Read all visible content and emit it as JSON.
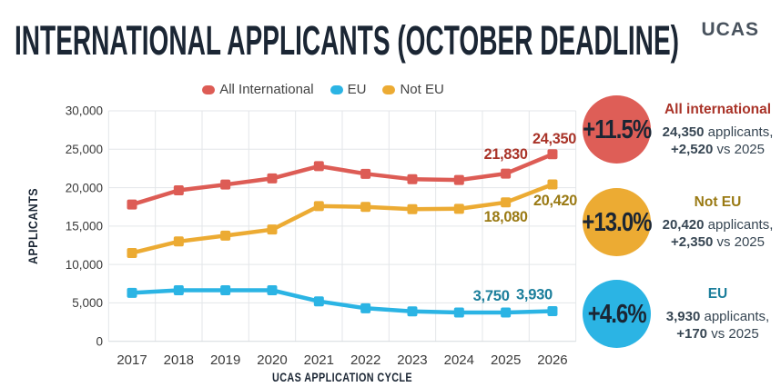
{
  "header": {
    "title": "INTERNATIONAL APPLICANTS (OCTOBER DEADLINE)",
    "logo": "UCAS"
  },
  "legend": [
    {
      "label": "All International",
      "color": "#dd5c55"
    },
    {
      "label": "EU",
      "color": "#2bb4e4"
    },
    {
      "label": "Not EU",
      "color": "#ecab33"
    }
  ],
  "chart_data": {
    "type": "line",
    "x": [
      2017,
      2018,
      2019,
      2020,
      2021,
      2022,
      2023,
      2024,
      2025,
      2026
    ],
    "xlabel": "UCAS APPLICATION CYCLE",
    "ylabel": "APPLICANTS",
    "ylim": [
      0,
      30000
    ],
    "yticks": [
      "0",
      "5,000",
      "10,000",
      "15,000",
      "20,000",
      "25,000",
      "30,000"
    ],
    "grid": true,
    "legend_position": "top",
    "marker": "square",
    "series": [
      {
        "name": "All International",
        "color": "#dd5c55",
        "label_color": "#a93328",
        "values": [
          17800,
          19650,
          20400,
          21200,
          22800,
          21800,
          21100,
          21000,
          21830,
          24350
        ],
        "point_labels": {
          "2025": "21,830",
          "2026": "24,350"
        }
      },
      {
        "name": "EU",
        "color": "#2bb4e4",
        "label_color": "#1b7e9b",
        "values": [
          6300,
          6650,
          6650,
          6650,
          5200,
          4300,
          3900,
          3750,
          3750,
          3930
        ],
        "point_labels": {
          "2025": "3,750",
          "2026": "3,930"
        }
      },
      {
        "name": "Not EU",
        "color": "#ecab33",
        "label_color": "#9a7a14",
        "values": [
          11500,
          13000,
          13750,
          14550,
          17600,
          17500,
          17200,
          17250,
          18080,
          20420
        ],
        "point_labels": {
          "2025": "18,080",
          "2026": "20,420"
        }
      }
    ]
  },
  "badges": [
    {
      "percent": "+11.5%",
      "circle_color": "#de5e57",
      "title": "All international",
      "title_color": "#a93328",
      "applicants": "24,350",
      "applicants_suffix": " applicants,",
      "delta": "+2,520",
      "delta_suffix": " vs 2025"
    },
    {
      "percent": "+13.0%",
      "circle_color": "#ecab33",
      "title": "Not EU",
      "title_color": "#9a7a14",
      "applicants": "20,420",
      "applicants_suffix": " applicants,",
      "delta": "+2,350",
      "delta_suffix": " vs 2025"
    },
    {
      "percent": "+4.6%",
      "circle_color": "#2bb4e4",
      "title": "EU",
      "title_color": "#1b7e9b",
      "applicants": "3,930",
      "applicants_suffix": " applicants,",
      "delta": "+170",
      "delta_suffix": " vs 2025"
    }
  ]
}
